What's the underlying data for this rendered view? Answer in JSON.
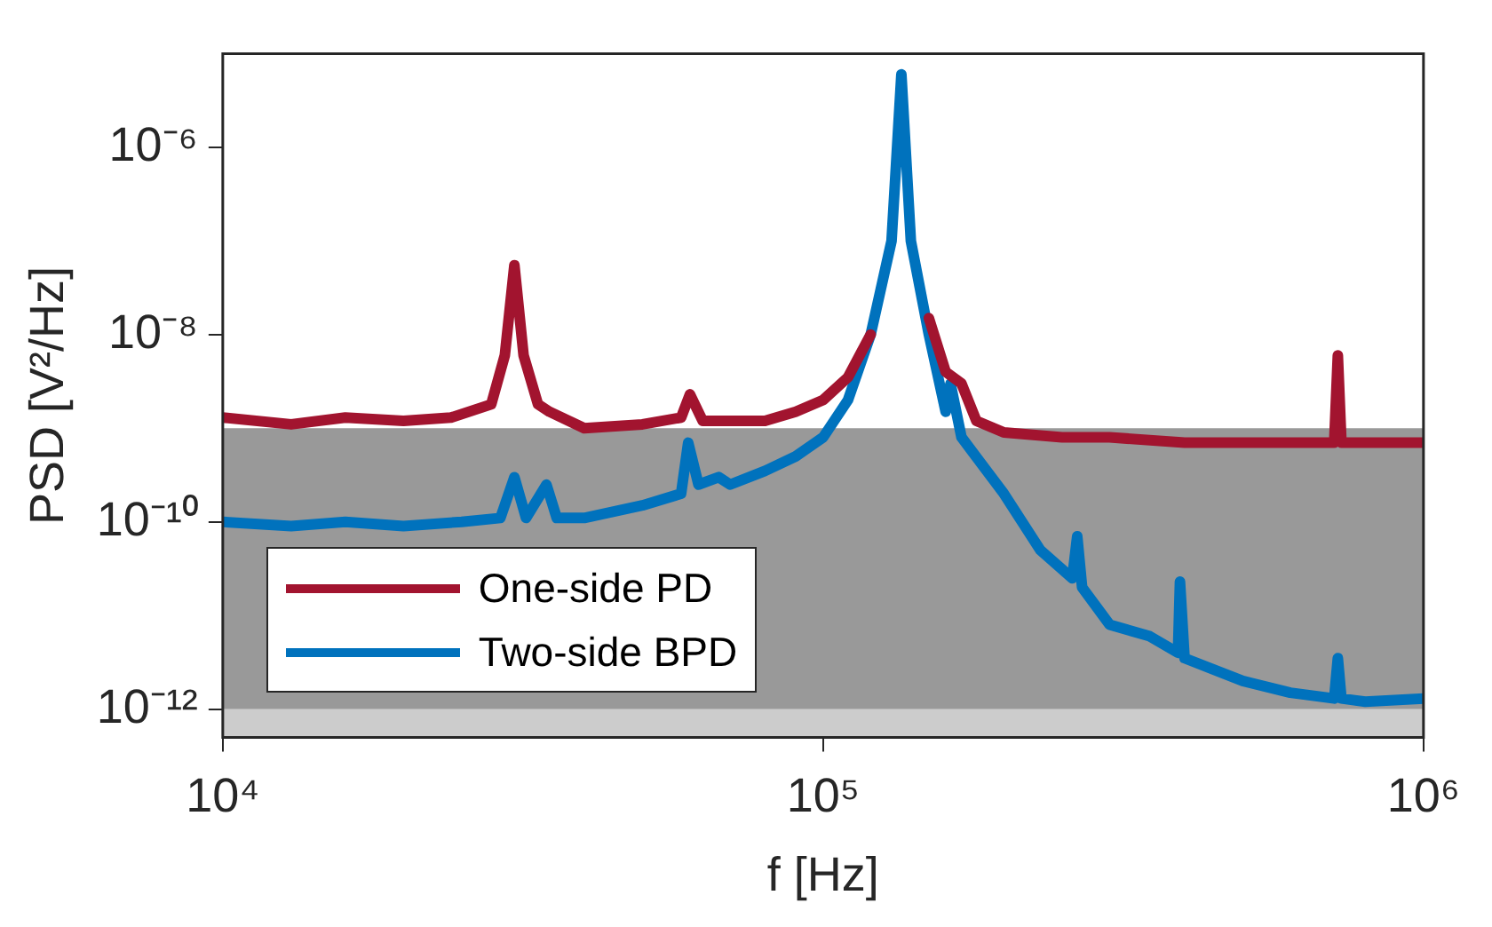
{
  "chart_data": {
    "type": "line",
    "xlabel": "f [Hz]",
    "ylabel": "PSD [V²/Hz]",
    "log": "xy",
    "xlim": [
      10000,
      1000000
    ],
    "xticks": [
      {
        "value": 10000,
        "label": "10⁴"
      },
      {
        "value": 100000,
        "label": "10⁵"
      },
      {
        "value": 1000000,
        "label": "10⁶"
      }
    ],
    "ylim": [
      5e-13,
      1e-05
    ],
    "yticks": [
      {
        "value": 1e-12,
        "label": "10⁻¹²"
      },
      {
        "value": 1e-10,
        "label": "10⁻¹⁰"
      },
      {
        "value": 1e-08,
        "label": "10⁻⁸"
      },
      {
        "value": 1e-06,
        "label": "10⁻⁶"
      }
    ],
    "bands": [
      {
        "axis": "y",
        "from": 1e-12,
        "to": 1e-09,
        "color": "#999999"
      },
      {
        "axis": "y",
        "from": 5e-13,
        "to": 1e-12,
        "color": "#cccccc"
      }
    ],
    "legend": "bottom left",
    "grid": false,
    "marker": "none",
    "line_style": "solid",
    "series": [
      {
        "name": "One-side PD",
        "color": "#a2142f",
        "x": [
          10000,
          13000,
          16000,
          20000,
          24000,
          28000,
          29500,
          30600,
          31700,
          33500,
          35000,
          40000,
          50000,
          58000,
          60000,
          63000,
          70000,
          80000,
          90000,
          100000,
          110000,
          120000,
          130000,
          135000,
          140000,
          150000,
          160000,
          170000,
          180000,
          200000,
          250000,
          300000,
          400000,
          500000,
          600000,
          710000,
          720000,
          730000,
          800000,
          1000000
        ],
        "values": [
          1.3e-09,
          1.1e-09,
          1.3e-09,
          1.2e-09,
          1.3e-09,
          1.8e-09,
          6e-09,
          5.5e-08,
          6e-09,
          1.8e-09,
          1.5e-09,
          1e-09,
          1.1e-09,
          1.3e-09,
          2.3e-09,
          1.2e-09,
          1.2e-09,
          1.2e-09,
          1.5e-09,
          2e-09,
          3.5e-09,
          1e-08,
          null,
          null,
          null,
          1.5e-08,
          4e-09,
          3e-09,
          1.2e-09,
          9e-10,
          8e-10,
          8e-10,
          7e-10,
          7e-10,
          7e-10,
          7e-10,
          6e-09,
          7e-10,
          7e-10,
          7e-10
        ]
      },
      {
        "name": "Two-side BPD",
        "color": "#0072bd",
        "x": [
          10000,
          13000,
          16000,
          20000,
          25000,
          29000,
          30600,
          32000,
          34600,
          36000,
          40000,
          50000,
          58000,
          59600,
          62000,
          67000,
          70000,
          80000,
          90000,
          100000,
          110000,
          120000,
          130000,
          135000,
          140000,
          150000,
          160000,
          163000,
          170000,
          200000,
          230000,
          260000,
          265000,
          270000,
          300000,
          350000,
          390000,
          393000,
          400000,
          500000,
          600000,
          710000,
          720000,
          730000,
          800000,
          1000000
        ],
        "values": [
          1e-10,
          9e-11,
          1e-10,
          9e-11,
          1e-10,
          1.1e-10,
          3e-10,
          1.1e-10,
          2.5e-10,
          1.1e-10,
          1.1e-10,
          1.5e-10,
          2e-10,
          7e-10,
          2.5e-10,
          3e-10,
          2.5e-10,
          3.5e-10,
          5e-10,
          8e-10,
          2e-09,
          1e-08,
          1e-07,
          6e-06,
          1e-07,
          1e-08,
          1.5e-09,
          3e-09,
          8e-10,
          2e-10,
          5e-11,
          2.5e-11,
          7e-11,
          2e-11,
          8e-12,
          6e-12,
          4e-12,
          2.3e-11,
          3.5e-12,
          2e-12,
          1.5e-12,
          1.3e-12,
          3.5e-12,
          1.3e-12,
          1.2e-12,
          1.3e-12
        ]
      }
    ]
  }
}
